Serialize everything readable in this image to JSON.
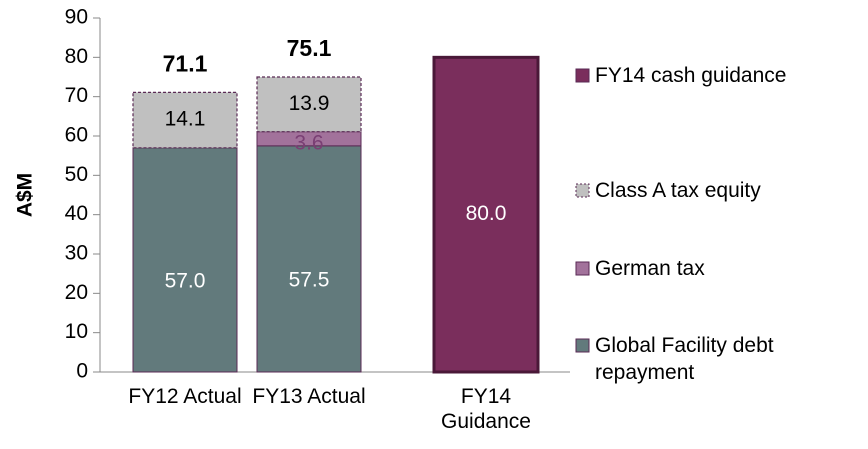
{
  "chart_data": {
    "type": "stacked_bar",
    "y_label": "A$M",
    "categories": [
      "FY12 Actual",
      "FY13 Actual",
      "FY14 Guidance"
    ],
    "series": [
      {
        "name": "Global Facility debt repayment",
        "color": "#627a7c",
        "values": [
          57.0,
          57.5,
          null
        ],
        "value_labels": [
          "57.0",
          "57.5",
          null
        ]
      },
      {
        "name": "German tax",
        "color": "#a2729b",
        "values": [
          null,
          3.6,
          null
        ]
      },
      {
        "name": "Class A tax equity",
        "color": "#c0c0c0",
        "values": [
          14.1,
          13.9,
          null
        ],
        "dashed": true
      },
      {
        "name": "FY14 cash guidance",
        "color": "#7a2e5c",
        "values": [
          null,
          null,
          80.0
        ],
        "value_labels": [
          null,
          null,
          "80.0"
        ]
      }
    ],
    "totals": [
      71.1,
      75.1,
      null
    ],
    "ylim": [
      0,
      90
    ],
    "yticks": [
      0,
      10,
      20,
      30,
      40,
      50,
      60,
      70,
      80,
      90
    ]
  }
}
